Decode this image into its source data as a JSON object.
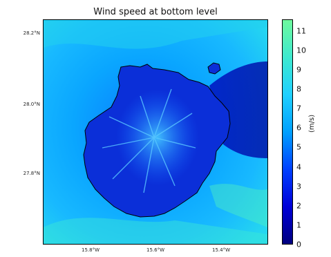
{
  "title": "Wind speed at bottom level",
  "map": {
    "lat_ticks": [
      "28.2°N",
      "28.0°N",
      "27.8°N"
    ],
    "lon_ticks": [
      "15.8°W",
      "15.6°W",
      "15.4°W"
    ],
    "island": "island-coastline"
  },
  "colorbar": {
    "ticks": [
      "0",
      "1",
      "2",
      "3",
      "4",
      "5",
      "6",
      "7",
      "8",
      "9",
      "10",
      "11"
    ],
    "unit": "(m/s)",
    "range": [
      0,
      11.6
    ],
    "colors": [
      "#00007f",
      "#0000d8",
      "#0040ff",
      "#00a0ff",
      "#20d0ff",
      "#3ee9cf",
      "#6ef99e"
    ]
  }
}
